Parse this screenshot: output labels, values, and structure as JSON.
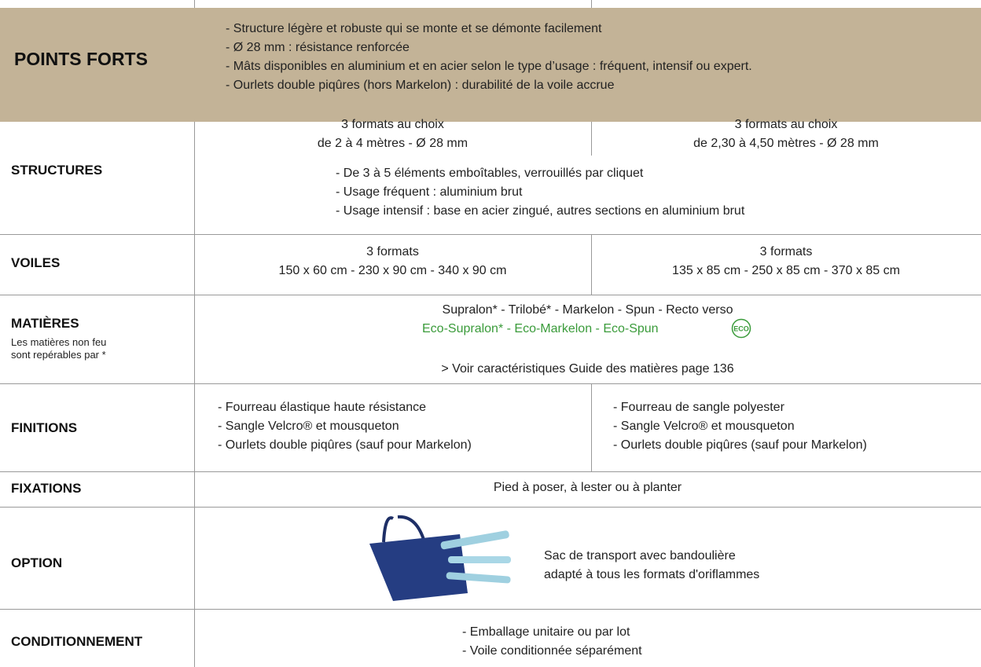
{
  "points_forts": {
    "label": "POINTS FORTS",
    "items": [
      "- Structure légère et robuste qui se monte et se démonte facilement",
      "- Ø 28 mm : résistance renforcée",
      "- Mâts disponibles en aluminium et en acier selon le type d’usage : fréquent, intensif ou expert.",
      "- Ourlets double piqûres (hors Markelon) : durabilité de la voile accrue"
    ]
  },
  "structures": {
    "label": "STRUCTURES",
    "left": [
      "3 formats au choix",
      "de 2 à 4 mètres - Ø 28 mm"
    ],
    "right": [
      "3 formats au choix",
      "de 2,30 à 4,50 mètres - Ø 28 mm"
    ],
    "items": [
      "- De 3 à 5 éléments emboîtables, verrouillés par cliquet",
      "- Usage fréquent : aluminium brut",
      "- Usage intensif : base en acier zingué, autres sections en aluminium brut"
    ]
  },
  "voiles": {
    "label": "VOILES",
    "left": [
      "3 formats",
      "150 x 60 cm - 230 x 90 cm - 340 x 90 cm"
    ],
    "right": [
      "3 formats",
      "135 x 85 cm -  250 x 85 cm - 370 x 85 cm"
    ]
  },
  "matieres": {
    "label": "MATIÈRES",
    "note": [
      "Les matières non feu",
      "sont repérables par *"
    ],
    "line1": "Supralon* - Trilobé* - Markelon - Spun - Recto verso",
    "line2": "Eco-Supralon* - Eco-Markelon - Eco-Spun",
    "badge": "ECO",
    "link": "> Voir caractéristiques Guide des matières page 136"
  },
  "finitions": {
    "label": "FINITIONS",
    "left": [
      "- Fourreau élastique haute résistance",
      "- Sangle Velcro® et mousqueton",
      "- Ourlets double piqûres (sauf pour Markelon)"
    ],
    "right": [
      "- Fourreau de sangle polyester",
      "- Sangle Velcro® et mousqueton",
      "- Ourlets double piqûres (sauf pour Markelon)"
    ]
  },
  "fixations": {
    "label": "FIXATIONS",
    "text": "Pied à poser, à lester ou à planter"
  },
  "option": {
    "label": "OPTION",
    "lines": [
      "Sac de transport avec bandoulière",
      "adapté à tous les formats d'oriflammes"
    ]
  },
  "conditionnement": {
    "label": "CONDITIONNEMENT",
    "items": [
      "- Emballage unitaire ou par lot",
      "- Voile conditionnée séparément"
    ]
  }
}
